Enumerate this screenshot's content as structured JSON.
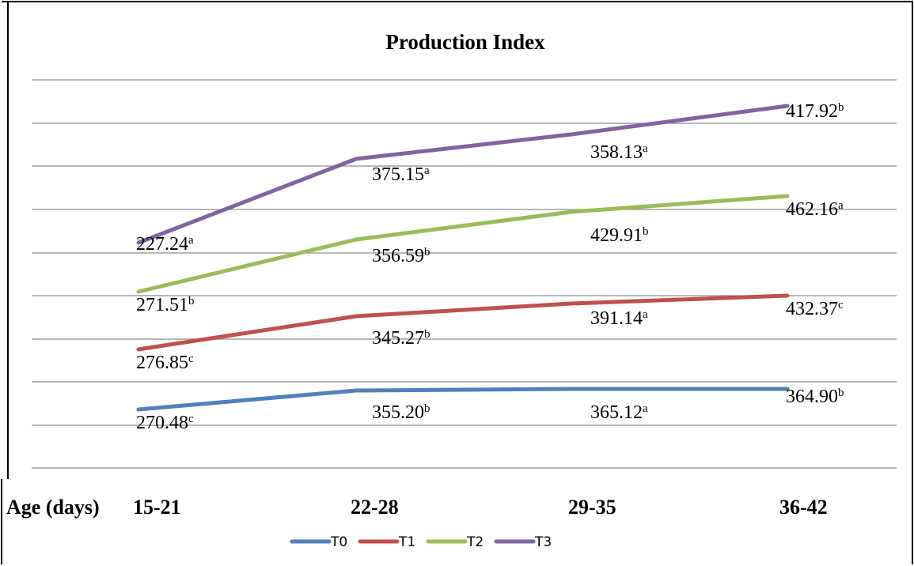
{
  "chart_data": {
    "type": "line",
    "title": "Production Index",
    "xlabel": "Age (days)",
    "ylabel": "",
    "categories": [
      "15-21",
      "22-28",
      "29-35",
      "36-42"
    ],
    "grid": true,
    "legend_position": "bottom",
    "series": [
      {
        "name": "T0",
        "color": "#4f81bd",
        "values": [
          270.48,
          355.2,
          365.12,
          364.9
        ],
        "labels": [
          "270.48",
          "355.20",
          "365.12",
          "364.90"
        ],
        "superscripts": [
          "c",
          "b",
          "a",
          "b"
        ]
      },
      {
        "name": "T1",
        "color": "#c0504d",
        "values": [
          276.85,
          345.27,
          391.14,
          432.37
        ],
        "labels": [
          "276.85",
          "345.27",
          "391.14",
          "432.37"
        ],
        "superscripts": [
          "c",
          "b",
          "a",
          "c"
        ]
      },
      {
        "name": "T2",
        "color": "#9bbb59",
        "values": [
          271.51,
          356.59,
          429.91,
          462.16
        ],
        "labels": [
          "271.51",
          "356.59",
          "429.91",
          "462.16"
        ],
        "superscripts": [
          "b",
          "b",
          "b",
          "a"
        ]
      },
      {
        "name": "T3",
        "color": "#8064a2",
        "values": [
          227.24,
          375.15,
          358.13,
          417.92
        ],
        "labels": [
          "227.24",
          "375.15",
          "358.13",
          "417.92"
        ],
        "superscripts": [
          "a",
          "a",
          "a",
          "b"
        ]
      }
    ]
  }
}
